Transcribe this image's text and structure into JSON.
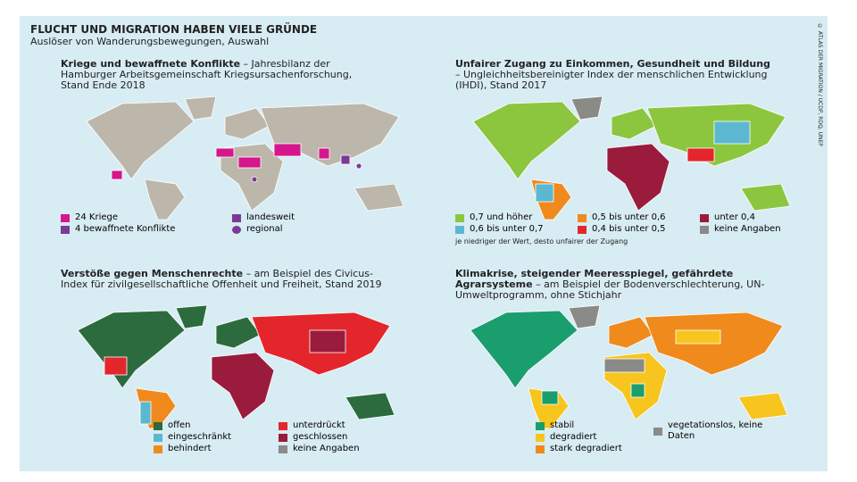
{
  "header": {
    "title": "FLUCHT UND MIGRATION HABEN VIELE GRÜNDE",
    "subtitle": "Auslöser von Wanderungsbewegungen, Auswahl",
    "credit": "© ATLAS DER MIGRATION / UCDP, RDQ, UNEP"
  },
  "panels": [
    {
      "title": "Kriege und bewaffnete Konflikte",
      "description": " – Jahresbilanz der Hamburger Arbeitsgemeinschaft Kriegsursachenforschung, Stand Ende 2018",
      "legend": [
        "24 Kriege",
        "4 bewaffnete Konflikte",
        "landesweit",
        "regional"
      ]
    },
    {
      "title": "Unfairer Zugang zu Einkommen, Gesundheit und Bildung",
      "description": " – Ungleichheitsbereinigter Index der menschlichen Entwicklung (IHDI), Stand 2017",
      "legend": [
        "0,7 und höher",
        "0,6 bis unter 0,7",
        "0,5 bis unter 0,6",
        "0,4 bis unter 0,5",
        "unter 0,4",
        "keine Angaben"
      ],
      "note": "je niedriger der Wert, desto unfairer der Zugang"
    },
    {
      "title": "Verstöße gegen Menschenrechte",
      "description": " – am Beispiel des Civicus-Index für zivilgesellschaftliche Offenheit und Freiheit, Stand 2019",
      "legend": [
        "offen",
        "eingeschränkt",
        "behindert",
        "unterdrückt",
        "geschlossen",
        "keine Angaben"
      ]
    },
    {
      "title": "Klimakrise, steigender Meeresspiegel, gefährdete Agrarsysteme",
      "description": " – am Beispiel der Bodenverschlechterung, UN-Umweltprogramm, ohne Stichjahr",
      "legend": [
        "stabil",
        "degradiert",
        "stark degradiert",
        "vegetationslos, keine Daten"
      ]
    }
  ]
}
